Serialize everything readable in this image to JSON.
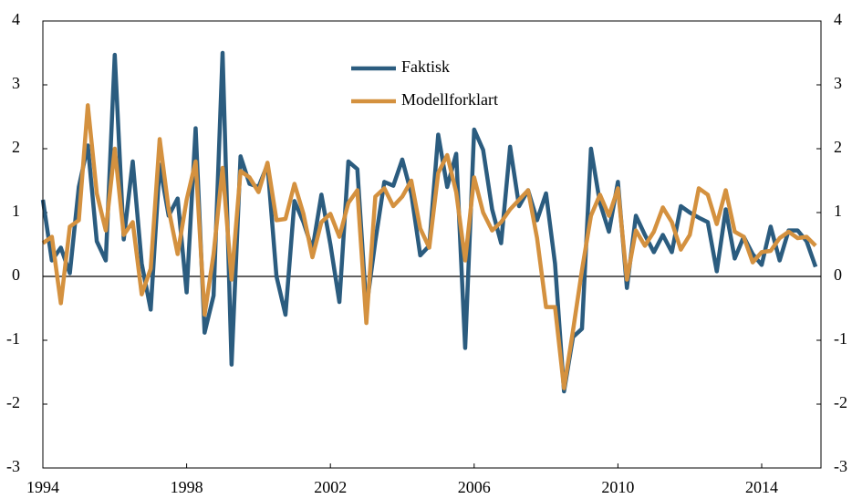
{
  "chart_data": {
    "type": "line",
    "x": [
      1994,
      1994.25,
      1994.5,
      1994.75,
      1995,
      1995.25,
      1995.5,
      1995.75,
      1996,
      1996.25,
      1996.5,
      1996.75,
      1997,
      1997.25,
      1997.5,
      1997.75,
      1998,
      1998.25,
      1998.5,
      1998.75,
      1999,
      1999.25,
      1999.5,
      1999.75,
      2000,
      2000.25,
      2000.5,
      2000.75,
      2001,
      2001.25,
      2001.5,
      2001.75,
      2002,
      2002.25,
      2002.5,
      2002.75,
      2003,
      2003.25,
      2003.5,
      2003.75,
      2004,
      2004.25,
      2004.5,
      2004.75,
      2005,
      2005.25,
      2005.5,
      2005.75,
      2006,
      2006.25,
      2006.5,
      2006.75,
      2007,
      2007.25,
      2007.5,
      2007.75,
      2008,
      2008.25,
      2008.5,
      2008.75,
      2009,
      2009.25,
      2009.5,
      2009.75,
      2010,
      2010.25,
      2010.5,
      2010.75,
      2011,
      2011.25,
      2011.5,
      2011.75,
      2012,
      2012.25,
      2012.5,
      2012.75,
      2013,
      2013.25,
      2013.5,
      2013.75,
      2014,
      2014.25,
      2014.5,
      2014.75,
      2015,
      2015.25,
      2015.5
    ],
    "series": [
      {
        "name": "Faktisk",
        "color": "#2b5c7f",
        "values": [
          1.2,
          0.25,
          0.45,
          0.05,
          1.4,
          2.05,
          0.55,
          0.25,
          3.47,
          0.58,
          1.8,
          0.2,
          -0.52,
          1.75,
          0.95,
          1.22,
          -0.25,
          2.32,
          -0.88,
          -0.3,
          3.5,
          -1.38,
          1.88,
          1.45,
          1.4,
          1.75,
          0.0,
          -0.6,
          1.18,
          0.85,
          0.42,
          1.28,
          0.5,
          -0.4,
          1.8,
          1.68,
          -0.5,
          0.55,
          1.48,
          1.42,
          1.83,
          1.3,
          0.33,
          0.48,
          2.22,
          1.4,
          1.92,
          -1.12,
          2.3,
          1.98,
          1.05,
          0.52,
          2.03,
          1.1,
          1.35,
          0.88,
          1.3,
          0.2,
          -1.8,
          -0.95,
          -0.82,
          2.0,
          1.15,
          0.7,
          1.48,
          -0.18,
          0.95,
          0.65,
          0.38,
          0.65,
          0.38,
          1.1,
          1.0,
          0.92,
          0.85,
          0.08,
          1.05,
          0.28,
          0.62,
          0.35,
          0.18,
          0.78,
          0.25,
          0.72,
          0.72,
          0.55,
          0.15
        ]
      },
      {
        "name": "Modellforklart",
        "color": "#d4913f",
        "values": [
          0.52,
          0.62,
          -0.42,
          0.78,
          0.88,
          2.68,
          1.3,
          0.72,
          2.0,
          0.65,
          0.85,
          -0.28,
          0.12,
          2.15,
          1.05,
          0.35,
          1.2,
          1.8,
          -0.6,
          0.35,
          1.7,
          -0.05,
          1.65,
          1.55,
          1.32,
          1.78,
          0.88,
          0.9,
          1.45,
          0.98,
          0.3,
          0.85,
          0.98,
          0.62,
          1.15,
          1.35,
          -0.73,
          1.25,
          1.38,
          1.1,
          1.25,
          1.5,
          0.75,
          0.45,
          1.62,
          1.9,
          1.32,
          0.25,
          1.55,
          1.0,
          0.72,
          0.85,
          1.05,
          1.2,
          1.35,
          0.6,
          -0.48,
          -0.48,
          -1.75,
          -0.85,
          0.1,
          0.95,
          1.28,
          0.95,
          1.38,
          -0.05,
          0.72,
          0.48,
          0.7,
          1.08,
          0.85,
          0.42,
          0.65,
          1.38,
          1.28,
          0.82,
          1.35,
          0.7,
          0.62,
          0.22,
          0.38,
          0.4,
          0.6,
          0.7,
          0.6,
          0.62,
          0.48
        ]
      }
    ],
    "xlim": [
      1994,
      2015.65
    ],
    "xticks": [
      1994,
      1998,
      2002,
      2006,
      2010,
      2014
    ],
    "ylim": [
      -3,
      4
    ],
    "yticks": [
      -3,
      -2,
      -1,
      0,
      1,
      2,
      3,
      4
    ],
    "y2lim": [
      -3,
      4
    ],
    "y2ticks": [
      -3,
      -2,
      -1,
      0,
      1,
      2,
      3,
      4
    ],
    "legend": "top-center"
  }
}
